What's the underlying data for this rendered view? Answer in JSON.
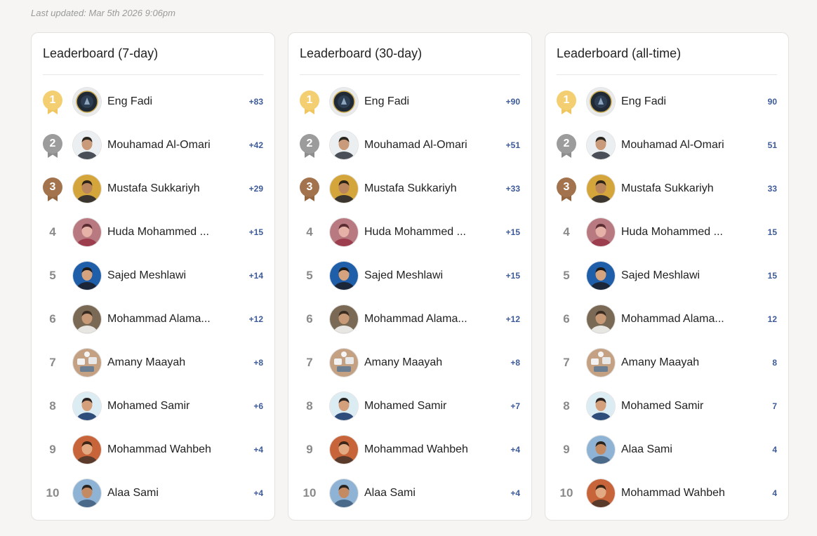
{
  "last_updated": "Last updated: Mar 5th 2026 9:06pm",
  "boards": [
    {
      "title": "Leaderboard (7-day)",
      "entries": [
        {
          "rank": "1",
          "name": "Eng Fadi",
          "score": "+83"
        },
        {
          "rank": "2",
          "name": "Mouhamad Al-Omari",
          "score": "+42"
        },
        {
          "rank": "3",
          "name": "Mustafa Sukkariyh",
          "score": "+29"
        },
        {
          "rank": "4",
          "name": "Huda Mohammed ...",
          "score": "+15"
        },
        {
          "rank": "5",
          "name": "Sajed Meshlawi",
          "score": "+14"
        },
        {
          "rank": "6",
          "name": "Mohammad Alama...",
          "score": "+12"
        },
        {
          "rank": "7",
          "name": "Amany Maayah",
          "score": "+8"
        },
        {
          "rank": "8",
          "name": "Mohamed Samir",
          "score": "+6"
        },
        {
          "rank": "9",
          "name": "Mohammad Wahbeh",
          "score": "+4"
        },
        {
          "rank": "10",
          "name": "Alaa Sami",
          "score": "+4"
        }
      ]
    },
    {
      "title": "Leaderboard (30-day)",
      "entries": [
        {
          "rank": "1",
          "name": "Eng Fadi",
          "score": "+90"
        },
        {
          "rank": "2",
          "name": "Mouhamad Al-Omari",
          "score": "+51"
        },
        {
          "rank": "3",
          "name": "Mustafa Sukkariyh",
          "score": "+33"
        },
        {
          "rank": "4",
          "name": "Huda Mohammed ...",
          "score": "+15"
        },
        {
          "rank": "5",
          "name": "Sajed Meshlawi",
          "score": "+15"
        },
        {
          "rank": "6",
          "name": "Mohammad Alama...",
          "score": "+12"
        },
        {
          "rank": "7",
          "name": "Amany Maayah",
          "score": "+8"
        },
        {
          "rank": "8",
          "name": "Mohamed Samir",
          "score": "+7"
        },
        {
          "rank": "9",
          "name": "Mohammad Wahbeh",
          "score": "+4"
        },
        {
          "rank": "10",
          "name": "Alaa Sami",
          "score": "+4"
        }
      ]
    },
    {
      "title": "Leaderboard (all-time)",
      "entries": [
        {
          "rank": "1",
          "name": "Eng Fadi",
          "score": "90"
        },
        {
          "rank": "2",
          "name": "Mouhamad Al-Omari",
          "score": "51"
        },
        {
          "rank": "3",
          "name": "Mustafa Sukkariyh",
          "score": "33"
        },
        {
          "rank": "4",
          "name": "Huda Mohammed ...",
          "score": "15"
        },
        {
          "rank": "5",
          "name": "Sajed Meshlawi",
          "score": "15"
        },
        {
          "rank": "6",
          "name": "Mohammad Alama...",
          "score": "12"
        },
        {
          "rank": "7",
          "name": "Amany Maayah",
          "score": "8"
        },
        {
          "rank": "8",
          "name": "Mohamed Samir",
          "score": "7"
        },
        {
          "rank": "9",
          "name": "Alaa Sami",
          "score": "4"
        },
        {
          "rank": "10",
          "name": "Mohammad Wahbeh",
          "score": "4"
        }
      ]
    }
  ]
}
